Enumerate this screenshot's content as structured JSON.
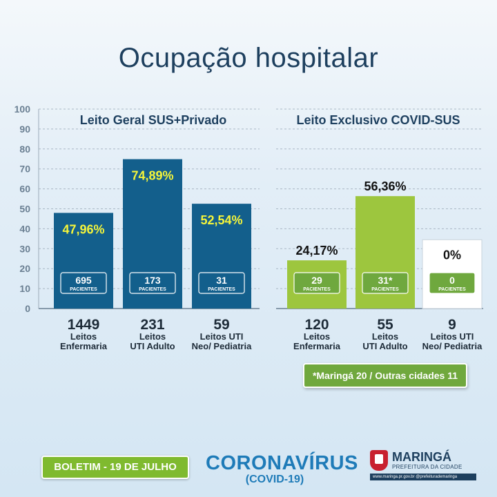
{
  "title": "Ocupação hospitalar",
  "colors": {
    "blue_bar": "#135f8c",
    "green_bar": "#9dc63e",
    "yellow_label": "#f5f53a",
    "badge_green": "#6fa83e",
    "title_navy": "#1d3f5e"
  },
  "chart_data": [
    {
      "type": "bar",
      "title": "Leito Geral SUS+Privado",
      "ylim": [
        0,
        100
      ],
      "yticks": [
        "0",
        "10",
        "20",
        "30",
        "40",
        "50",
        "60",
        "70",
        "80",
        "90",
        "100"
      ],
      "values": [
        47.96,
        74.89,
        52.54
      ],
      "value_labels": [
        "47,96%",
        "74,89%",
        "52,54%"
      ],
      "badges": [
        {
          "value": "695",
          "unit": "PACIENTES"
        },
        {
          "value": "173",
          "unit": "PACIENTES"
        },
        {
          "value": "31",
          "unit": "PACIENTES"
        }
      ],
      "categories": [
        {
          "count": "1449",
          "line1": "Leitos",
          "line2": "Enfermaria"
        },
        {
          "count": "231",
          "line1": "Leitos",
          "line2": "UTI Adulto"
        },
        {
          "count": "59",
          "line1": "Leitos UTI",
          "line2": "Neo/ Pediatria"
        }
      ],
      "grid": true
    },
    {
      "type": "bar",
      "title": "Leito Exclusivo COVID-SUS",
      "ylim": [
        0,
        100
      ],
      "values": [
        24.17,
        56.36,
        0
      ],
      "value_labels": [
        "24,17%",
        "56,36%",
        "0%"
      ],
      "badges": [
        {
          "value": "29",
          "unit": "PACIENTES"
        },
        {
          "value": "31*",
          "unit": "PACIENTES"
        },
        {
          "value": "0",
          "unit": "PACIENTES"
        }
      ],
      "categories": [
        {
          "count": "120",
          "line1": "Leitos",
          "line2": "Enfermaria"
        },
        {
          "count": "55",
          "line1": "Leitos",
          "line2": "UTI Adulto"
        },
        {
          "count": "9",
          "line1": "Leitos UTI",
          "line2": "Neo/ Pediatria"
        }
      ],
      "grid": true,
      "annotation": "*Maringá 20 / Outras cidades 11"
    }
  ],
  "footer": {
    "bulletin": "BOLETIM - 19 DE JULHO",
    "campaign": "CORONAVÍRUS",
    "campaign_sub": "(COVID-19)",
    "city": "MARINGÁ",
    "city_sub": "PREFEITURA DA CIDADE",
    "city_bar": "www.maringa.pr.gov.br  @prefeiturademaringa"
  }
}
